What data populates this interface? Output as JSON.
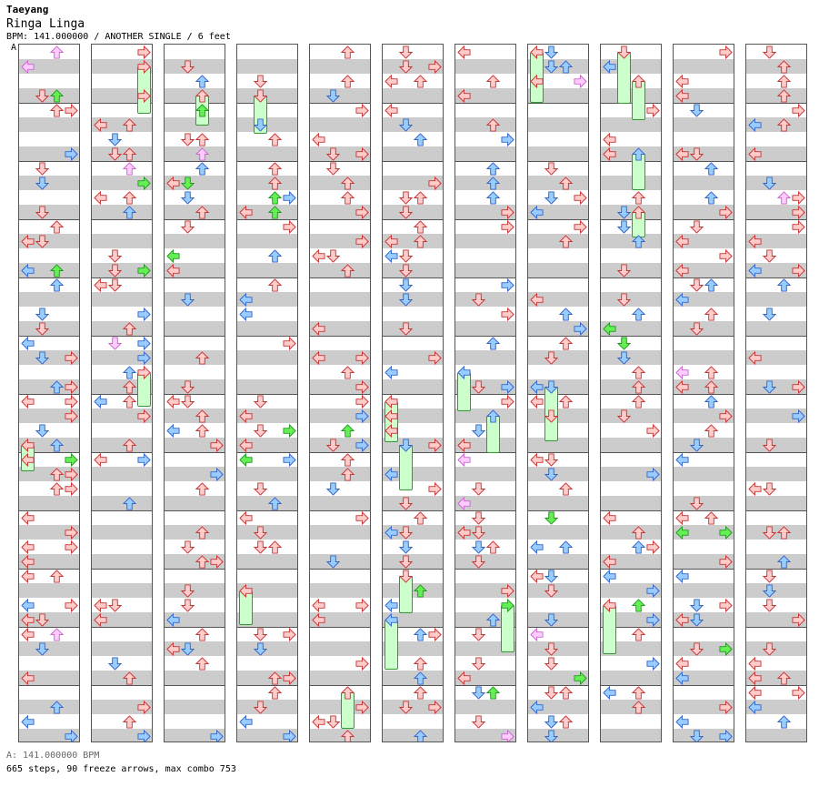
{
  "header": {
    "artist": "Taeyang",
    "title": "Ringa Linga",
    "info": "BPM: 141.000000 / ANOTHER SINGLE / 6 feet",
    "marker": "A"
  },
  "footer": {
    "bpm_line": "A: 141.000000 BPM",
    "summary_line": "665 steps, 90 freeze arrows, max combo 753"
  },
  "chart_data": {
    "type": "step_chart",
    "bpm": 141,
    "difficulty": "ANOTHER SINGLE",
    "level": "6 feet",
    "columns": 11,
    "measures_per_column": 4,
    "steps": 665,
    "freeze_arrows": 90,
    "max_combo": 753
  },
  "colors": {
    "red_fill": "#ffcccc",
    "red_stroke": "#cc3333",
    "blue_fill": "#99ccff",
    "blue_stroke": "#3366cc",
    "green_fill": "#66ee55",
    "green_stroke": "#229922",
    "pink_fill": "#ffccff",
    "pink_stroke": "#cc66cc",
    "freeze_fill": "#ccffcc",
    "freeze_stroke": "#339933",
    "band_light": "#ffffff",
    "band_dark": "#cccccc"
  }
}
